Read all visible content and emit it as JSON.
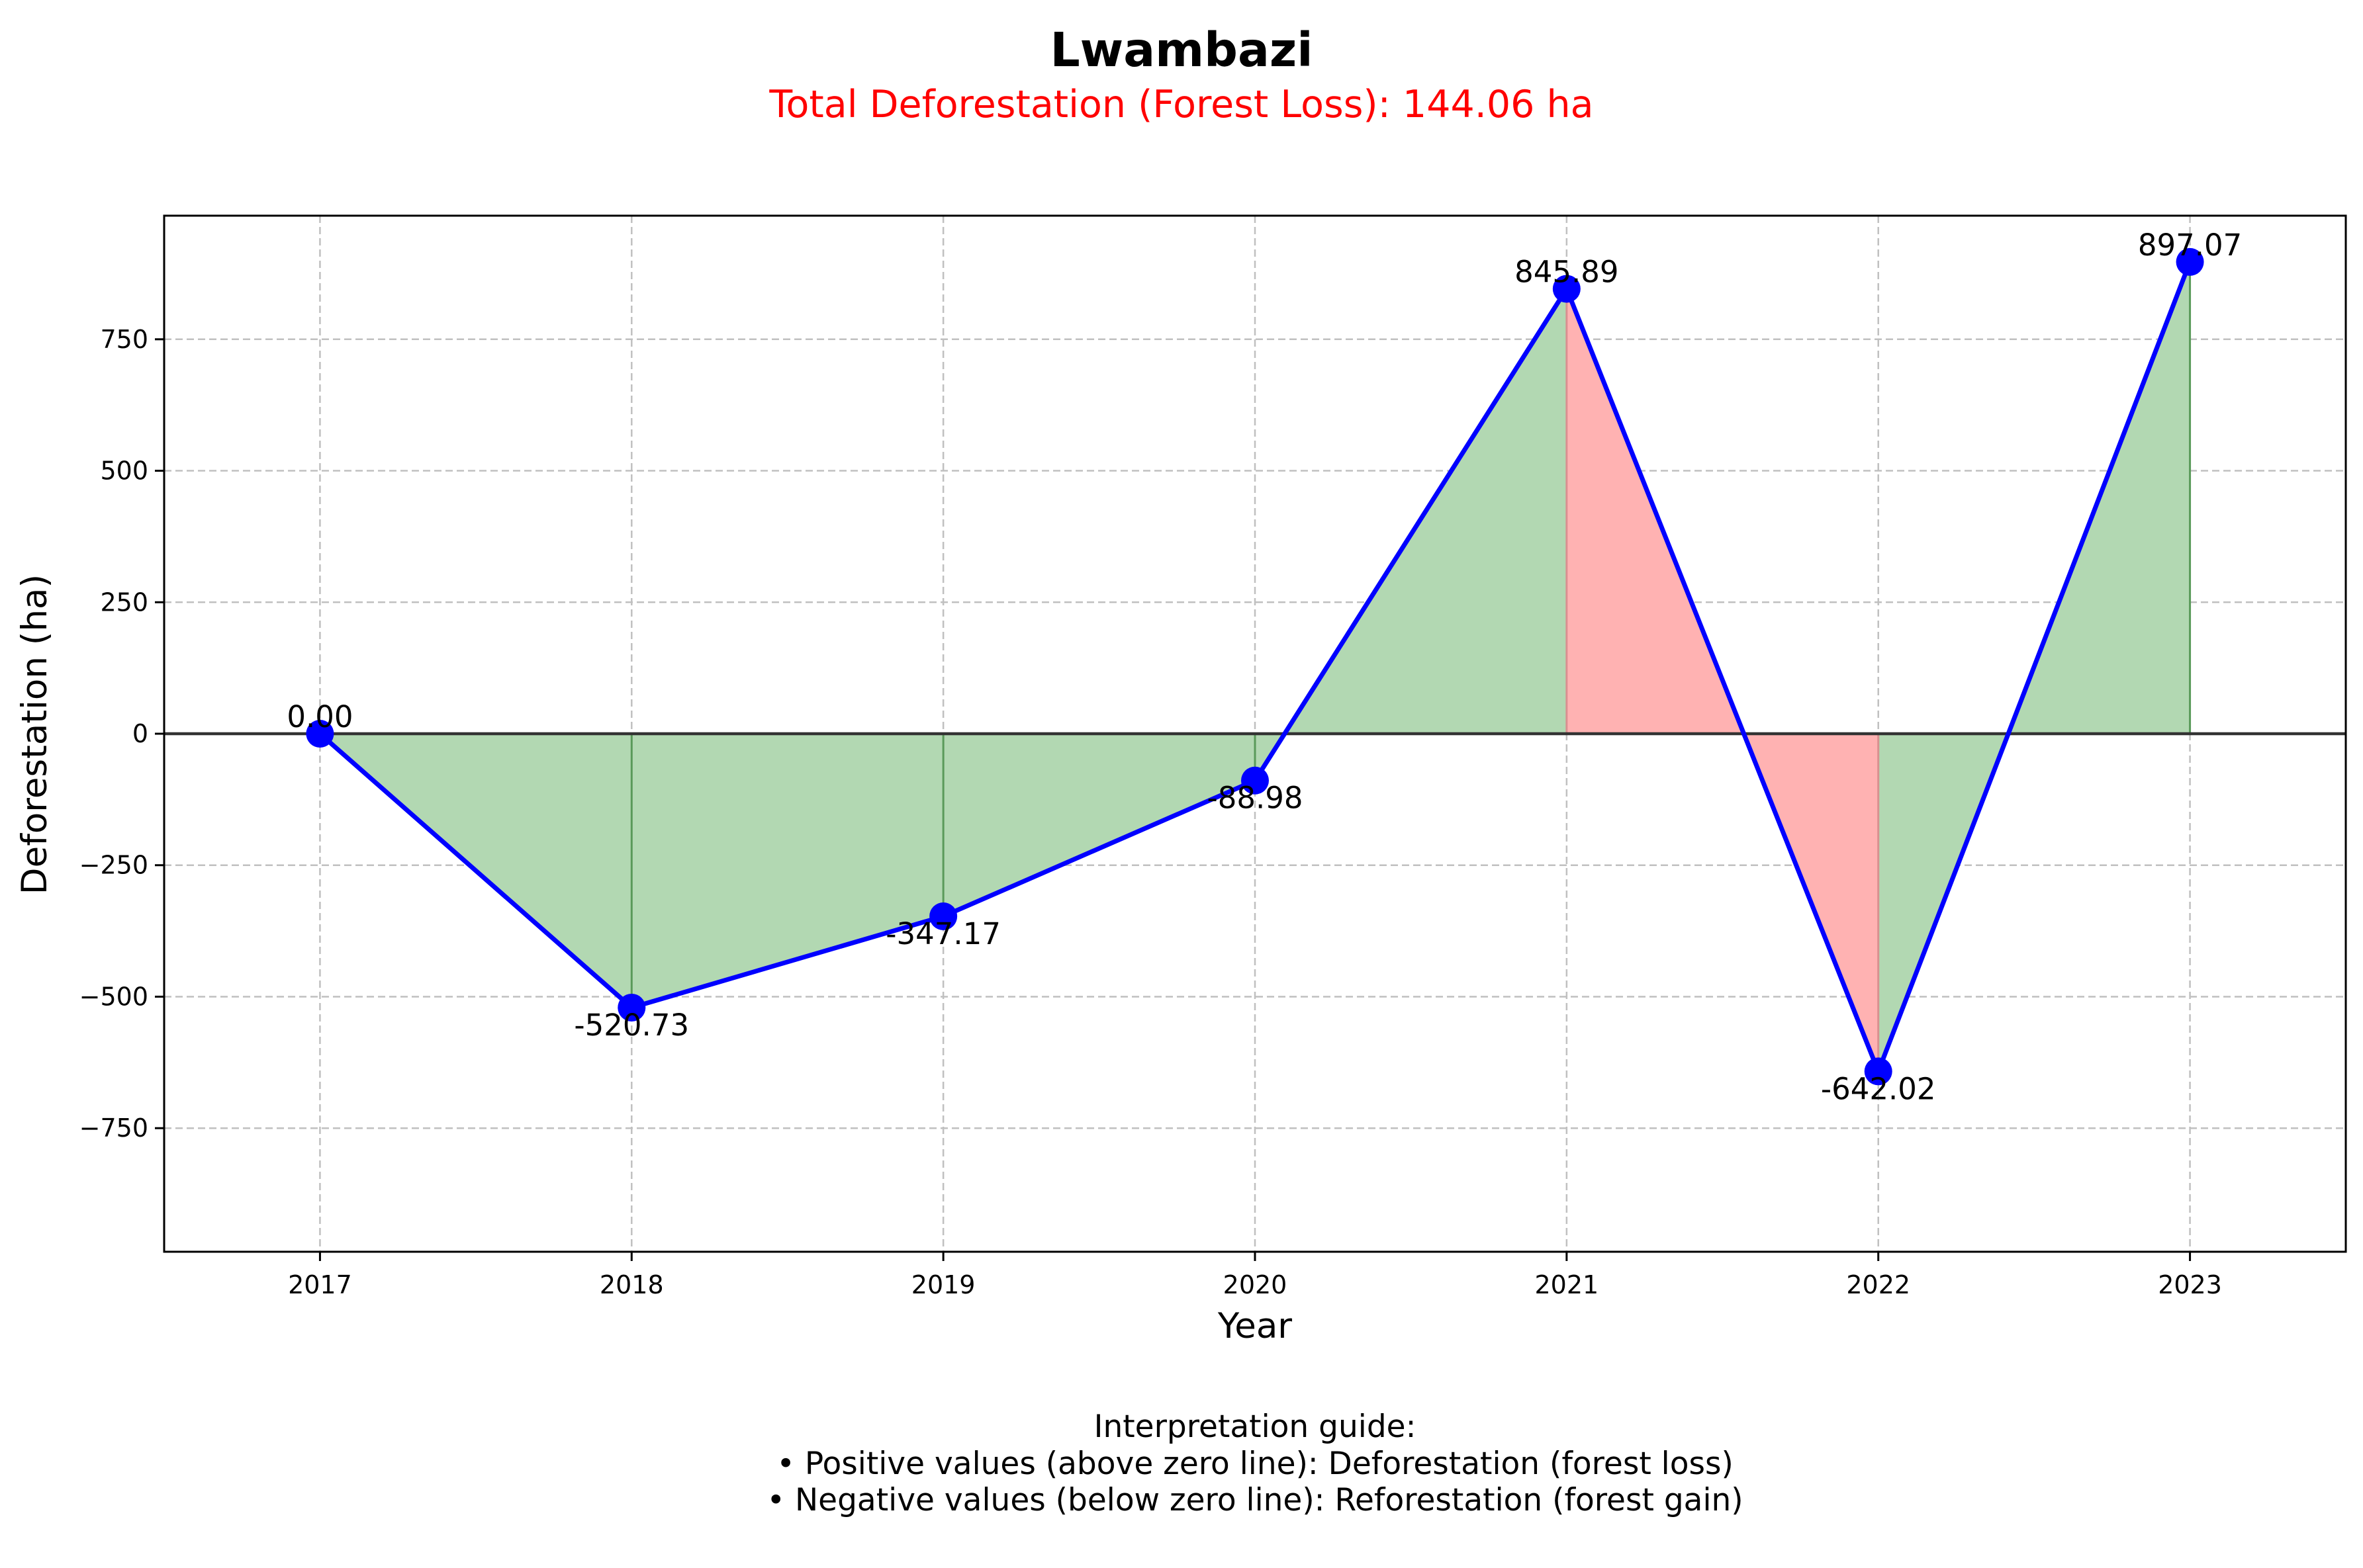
{
  "chart_data": {
    "type": "line",
    "title": "Lwambazi",
    "subtitle": "Total Deforestation (Forest Loss): 144.06 ha",
    "xlabel": "Year",
    "ylabel": "Deforestation (ha)",
    "categories": [
      "2017",
      "2018",
      "2019",
      "2020",
      "2021",
      "2022",
      "2023"
    ],
    "values": [
      0.0,
      -520.73,
      -347.17,
      -88.98,
      845.89,
      -642.02,
      897.07
    ],
    "data_labels": [
      "0.00",
      "-520.73",
      "-347.17",
      "-88.98",
      "845.89",
      "-642.02",
      "897.07"
    ],
    "ylim": [
      -985,
      985
    ],
    "xlim": [
      -0.5,
      6.5
    ],
    "yticks": [
      -750,
      -500,
      -250,
      0,
      250,
      500,
      750
    ],
    "ytick_labels": [
      "−750",
      "−500",
      "−250",
      "0",
      "250",
      "500",
      "750"
    ],
    "grid": true,
    "zero_line": true,
    "colors": {
      "line": "#0000ff",
      "marker": "#0000ff",
      "fill_default": "#b2d8b2",
      "fill_highlight": "#ffb2b2",
      "vline_default": "#5a9a5a",
      "vline_highlight": "#d89090",
      "zero_line": "#333333",
      "grid": "#c0c0c0",
      "title": "#000000",
      "subtitle": "#ff0000"
    },
    "fill_highlight_segments": [
      [
        4,
        5
      ]
    ]
  },
  "guide": {
    "heading": "Interpretation guide:",
    "lines": [
      "• Positive values (above zero line): Deforestation (forest loss)",
      "• Negative values (below zero line): Reforestation (forest gain)"
    ]
  }
}
